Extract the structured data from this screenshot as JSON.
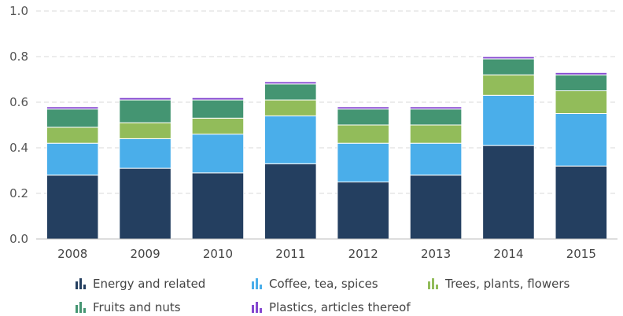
{
  "chart_data": {
    "type": "bar",
    "stacked": true,
    "categories": [
      "2008",
      "2009",
      "2010",
      "2011",
      "2012",
      "2013",
      "2014",
      "2015"
    ],
    "ylim": [
      0,
      1.0
    ],
    "yticks": [
      "0.0",
      "0.2",
      "0.4",
      "0.6",
      "0.8",
      "1.0"
    ],
    "ytick_values": [
      0,
      0.2,
      0.4,
      0.6,
      0.8,
      1.0
    ],
    "grid": true,
    "legend_position": "bottom",
    "series": [
      {
        "name": "Energy and related",
        "color": "#243f60",
        "values": [
          0.28,
          0.31,
          0.29,
          0.33,
          0.25,
          0.28,
          0.41,
          0.32
        ]
      },
      {
        "name": "Coffee, tea, spices",
        "color": "#4aaeea",
        "values": [
          0.14,
          0.13,
          0.17,
          0.21,
          0.17,
          0.14,
          0.22,
          0.23
        ]
      },
      {
        "name": "Trees, plants, flowers",
        "color": "#92bc5a",
        "values": [
          0.07,
          0.07,
          0.07,
          0.07,
          0.08,
          0.08,
          0.09,
          0.1
        ]
      },
      {
        "name": "Fruits and nuts",
        "color": "#449572",
        "values": [
          0.08,
          0.1,
          0.08,
          0.07,
          0.07,
          0.07,
          0.07,
          0.07
        ]
      },
      {
        "name": "Plastics, articles thereof",
        "color": "#8448d0",
        "values": [
          0.01,
          0.01,
          0.01,
          0.01,
          0.01,
          0.01,
          0.01,
          0.01
        ]
      }
    ]
  }
}
